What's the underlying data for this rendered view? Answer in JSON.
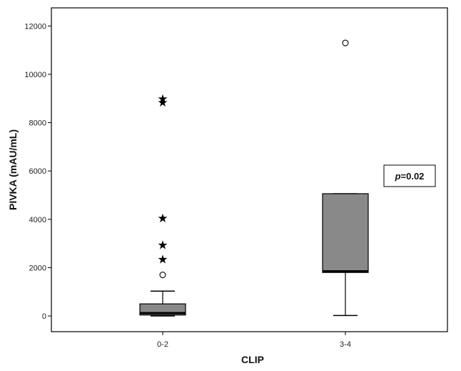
{
  "chart_data": {
    "type": "box",
    "xlabel": "CLIP",
    "ylabel": "PIVKA (mAU/mL)",
    "ylim": [
      -650,
      12750
    ],
    "yticks": [
      0,
      2000,
      4000,
      6000,
      8000,
      10000,
      12000
    ],
    "categories": [
      "0-2",
      "3-4"
    ],
    "boxes": [
      {
        "category": "0-2",
        "whisker_low": 0,
        "q1": 40,
        "median": 120,
        "q3": 500,
        "whisker_high": 1030,
        "outliers": [
          1700
        ],
        "extremes": [
          2350,
          2950,
          4050,
          8850,
          8990
        ]
      },
      {
        "category": "3-4",
        "whisker_low": 20,
        "q1": 1800,
        "median": 1850,
        "q3": 5060,
        "whisker_high": 5060,
        "outliers": [
          11300
        ],
        "extremes": []
      }
    ],
    "box_fill": "#898989",
    "annotation": {
      "italic": "p",
      "rest": "=0.02"
    },
    "grid": false
  }
}
